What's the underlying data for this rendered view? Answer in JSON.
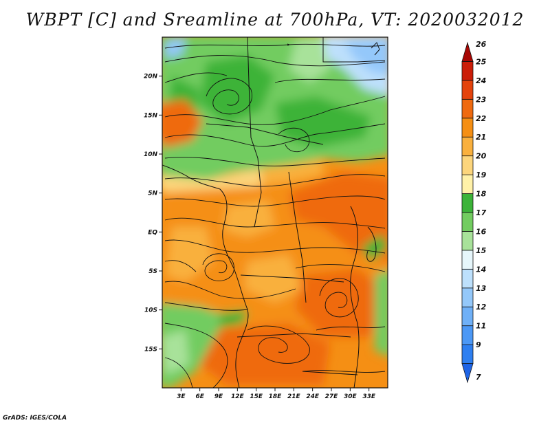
{
  "title": "WBPT [C] and Sreamline at 700hPa, VT: 2020032012",
  "footer": "GrADS: IGES/COLA",
  "map": {
    "lat_labels": [
      "20N",
      "15N",
      "10N",
      "5N",
      "EQ",
      "5S",
      "10S",
      "15S"
    ],
    "lon_labels": [
      "3E",
      "6E",
      "9E",
      "12E",
      "15E",
      "18E",
      "21E",
      "24E",
      "27E",
      "30E",
      "33E"
    ],
    "lat_values": [
      20,
      15,
      10,
      5,
      0,
      -5,
      -10,
      -15
    ],
    "lon_values": [
      3,
      6,
      9,
      12,
      15,
      18,
      21,
      24,
      27,
      30,
      33
    ],
    "lon_range": [
      0,
      36
    ],
    "lat_range": [
      -20,
      25
    ]
  },
  "colorbar": {
    "labels": [
      "7",
      "9",
      "11",
      "12",
      "13",
      "14",
      "15",
      "16",
      "17",
      "18",
      "19",
      "20",
      "21",
      "22",
      "23",
      "24",
      "25",
      "26"
    ],
    "colors": [
      "#1e64e6",
      "#2e7ff0",
      "#4c98f5",
      "#6fb0f7",
      "#94c8fa",
      "#bde0fc",
      "#e6f6fb",
      "#a8e29a",
      "#72cc60",
      "#3cb339",
      "#fff1a8",
      "#fcd57c",
      "#f9b03e",
      "#f58f14",
      "#ef6a10",
      "#e4430c",
      "#cb1d08",
      "#a70704"
    ]
  }
}
